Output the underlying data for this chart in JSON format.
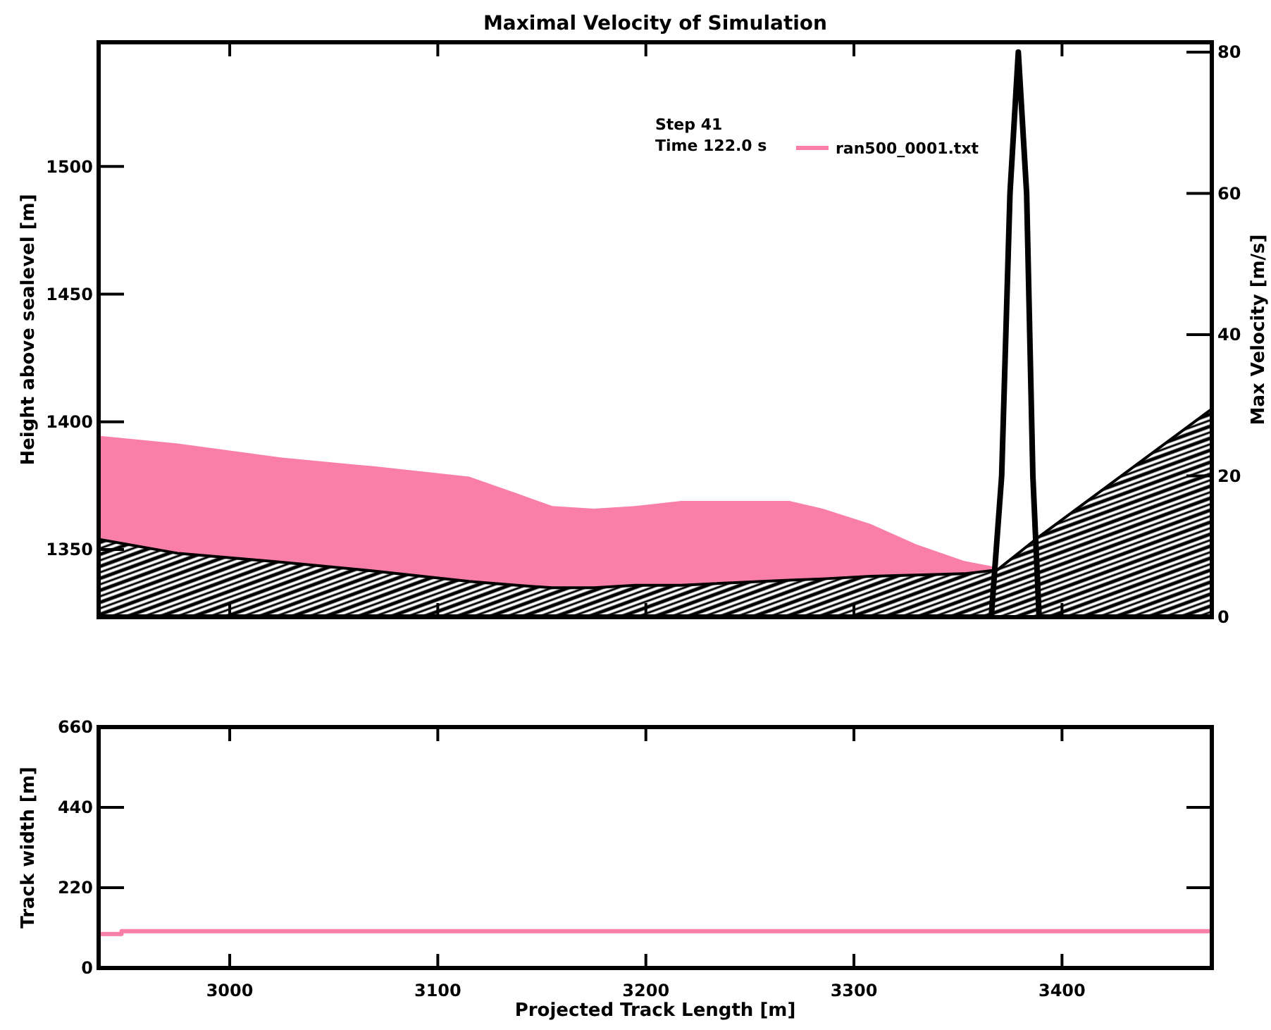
{
  "chart_data": [
    {
      "type": "area",
      "title": "Maximal Velocity of Simulation",
      "ylabel": "Height above sealevel [m]",
      "y2label": "Max Velocity [m/s]",
      "legend": "top right",
      "grid": false,
      "annotations": [
        "Step 41",
        "Time 122.0 s"
      ],
      "x": [
        2937,
        2975,
        3025,
        3070,
        3115,
        3138,
        3155,
        3175,
        3195,
        3217,
        3269,
        3285,
        3308,
        3330,
        3353,
        3369,
        3389,
        3472
      ],
      "xlim": [
        2937,
        3472
      ],
      "xticks": [
        3000,
        3100,
        3200,
        3300,
        3400
      ],
      "ylim": [
        1323.5,
        1548.6
      ],
      "yticks": [
        1350,
        1400,
        1450,
        1500
      ],
      "y2lim": [
        0,
        81.4
      ],
      "y2ticks": [
        0,
        20,
        40,
        60,
        80
      ],
      "tick_labels": "y",
      "series": [
        {
          "color": "#000000",
          "values": [
            1354,
            1348.5,
            1345,
            1341.5,
            1337.5,
            1336,
            1335,
            1335,
            1336,
            1336,
            1338,
            1338.5,
            1339.5,
            1340,
            1340.5,
            1342,
            1355,
            1405
          ]
        },
        {
          "name": "ran500_0001.txt",
          "color": "#f97fa8",
          "values": [
            1394.5,
            1391.5,
            1386,
            1382.5,
            1378.5,
            1372,
            1367,
            1366,
            1367,
            1369,
            1369,
            1366,
            1360,
            1352,
            1345.5,
            1343,
            null,
            null
          ]
        },
        {
          "type": "line",
          "axis": "y2",
          "color": "#000000",
          "x": [
            2937,
            3366,
            3371,
            3375,
            3379,
            3383,
            3386,
            3389,
            3472
          ],
          "values": [
            0,
            0,
            20,
            60,
            80,
            60,
            20,
            0,
            0
          ]
        }
      ]
    },
    {
      "type": "step",
      "xlabel": "Projected Track Length [m]",
      "ylabel": "Track width [m]",
      "legend": false,
      "grid": false,
      "xlim": [
        2937,
        3472
      ],
      "xticks": [
        3000,
        3100,
        3200,
        3300,
        3400
      ],
      "ylim": [
        0,
        660
      ],
      "yticks": [
        0,
        220,
        440,
        660
      ],
      "series": [
        {
          "color": "#f97fa8",
          "x": [
            2937,
            2948,
            3472
          ],
          "values": [
            93,
            101,
            101
          ]
        }
      ]
    }
  ]
}
